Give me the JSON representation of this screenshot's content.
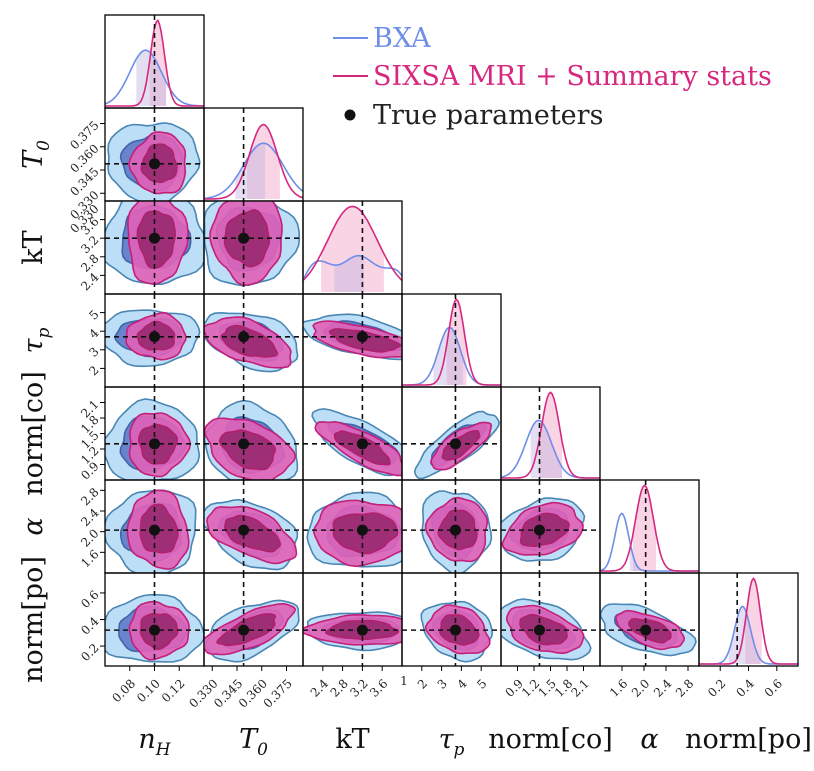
{
  "chart_data": {
    "type": "corner",
    "parameters": [
      {
        "label": "n_H",
        "symbol": "n",
        "sub": "H",
        "italic": true,
        "range": [
          0.06,
          0.14
        ],
        "ticks": [
          0.08,
          0.1,
          0.12
        ],
        "tick_labels": [
          "0.08",
          "0.10",
          "0.12"
        ],
        "true_value": 0.1
      },
      {
        "label": "T_0",
        "symbol": "T",
        "sub": "0",
        "italic": true,
        "range": [
          0.325,
          0.385
        ],
        "ticks": [
          0.33,
          0.345,
          0.36,
          0.375
        ],
        "tick_labels": [
          "0.330",
          "0.345",
          "0.360",
          "0.375"
        ],
        "true_value": 0.349
      },
      {
        "label": "kT",
        "symbol": "kT",
        "sub": "",
        "italic": false,
        "range": [
          2.0,
          4.0
        ],
        "ticks": [
          2.4,
          2.8,
          3.2,
          3.6
        ],
        "tick_labels": [
          "2.4",
          "2.8",
          "3.2",
          "3.6"
        ],
        "true_value": 3.2
      },
      {
        "label": "τ_p",
        "symbol": "τ",
        "sub": "p",
        "italic": true,
        "range": [
          1.0,
          6.0
        ],
        "ticks": [
          2,
          3,
          4,
          5
        ],
        "tick_labels": [
          "2",
          "3",
          "4",
          "5"
        ],
        "true_value": 3.7
      },
      {
        "label": "norm[co]",
        "symbol": "norm[co]",
        "sub": "",
        "italic": false,
        "range": [
          0.6,
          2.4
        ],
        "ticks": [
          0.9,
          1.2,
          1.5,
          1.8,
          2.1
        ],
        "tick_labels": [
          "0.9",
          "1.2",
          "1.5",
          "1.8",
          "2.1"
        ],
        "true_value": 1.3
      },
      {
        "label": "α",
        "symbol": "α",
        "sub": "",
        "italic": true,
        "range": [
          1.2,
          3.0
        ],
        "ticks": [
          1.6,
          2.0,
          2.4,
          2.8
        ],
        "tick_labels": [
          "1.6",
          "2.0",
          "2.4",
          "2.8"
        ],
        "true_value": 2.03
      },
      {
        "label": "norm[po]",
        "symbol": "norm[po]",
        "sub": "",
        "italic": false,
        "range": [
          0.05,
          0.75
        ],
        "ticks": [
          0.2,
          0.4,
          0.6
        ],
        "tick_labels": [
          "0.2",
          "0.4",
          "0.6"
        ],
        "true_value": 0.32
      }
    ],
    "stray_tick_labels": {
      "kT_y_top": "0.330",
      "kT_x_right": "1",
      "tau_x_left": "1"
    },
    "series": [
      {
        "name": "BXA",
        "color": "#6e8ee8",
        "fill_inner": "#5a74c4",
        "fill_outer": "#b8dcf5",
        "edge": "#4a86b4"
      },
      {
        "name": "SIXSA MRI + Summary stats",
        "color": "#d6287f",
        "fill_inner": "#98286f",
        "fill_outer": "#e062b8",
        "edge": "#c2207a"
      }
    ],
    "marker_label": "True parameters",
    "legend_position": "top-right"
  }
}
